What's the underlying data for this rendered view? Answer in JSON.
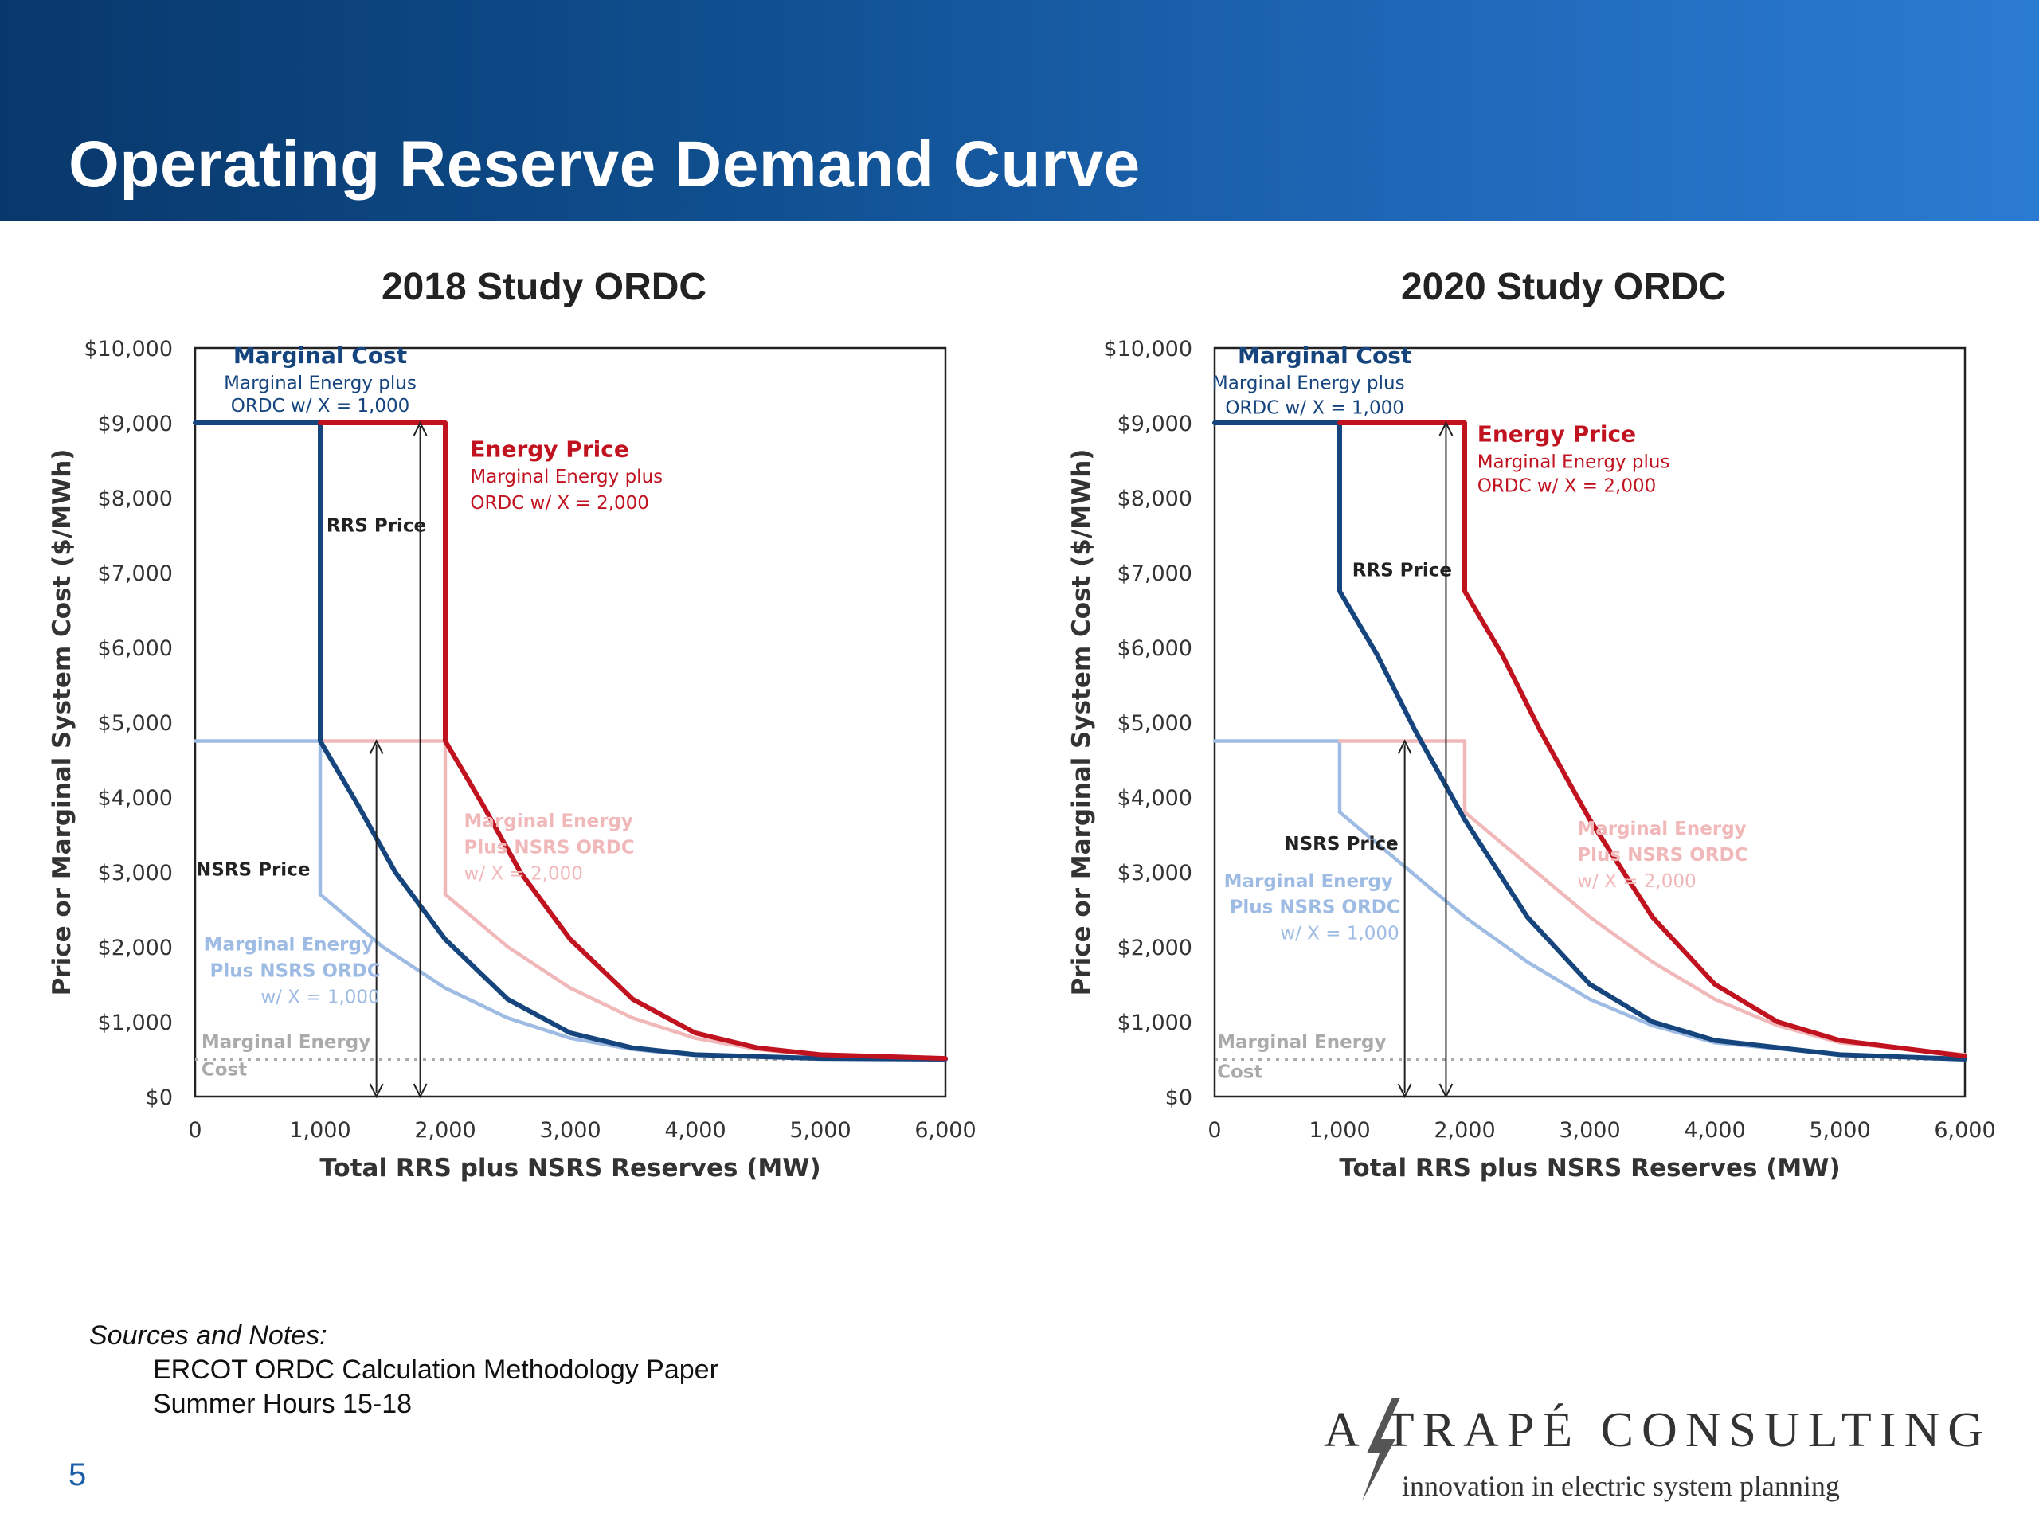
{
  "slide": {
    "title": "Operating Reserve Demand Curve"
  },
  "notes": {
    "heading": "Sources and Notes:",
    "lines": [
      "ERCOT ORDC Calculation Methodology Paper",
      "Summer Hours 15-18"
    ]
  },
  "page_number": "5",
  "logo": {
    "company": "A TRAPÉ CONSULTING",
    "tagline": "innovation in electric system planning",
    "icon": "lightning-bolt-icon"
  },
  "colors": {
    "marginal_cost": "#16457e",
    "energy_price": "#c1121f",
    "nsrs_marginal_cost": "#9dbbe3",
    "nsrs_energy_price": "#f1b8ba",
    "marginal_energy_cost": "#aaaaaa"
  },
  "chart_data": [
    {
      "type": "line",
      "title": "2018 Study ORDC",
      "xlabel": "Total RRS plus NSRS Reserves (MW)",
      "ylabel": "Price or Marginal System Cost ($/MWh)",
      "xlim": [
        0,
        6000
      ],
      "ylim": [
        0,
        10000
      ],
      "x_ticks": [
        "0",
        "1,000",
        "2,000",
        "3,000",
        "4,000",
        "5,000",
        "6,000"
      ],
      "y_ticks": [
        "$0",
        "$1,000",
        "$2,000",
        "$3,000",
        "$4,000",
        "$5,000",
        "$6,000",
        "$7,000",
        "$8,000",
        "$9,000",
        "$10,000"
      ],
      "grid": false,
      "series": [
        {
          "name": "Marginal Cost",
          "style": "thick",
          "color": "#16457e",
          "points": [
            [
              0,
              9000
            ],
            [
              1000,
              9000
            ],
            [
              1000,
              4750
            ],
            [
              1300,
              3900
            ],
            [
              1600,
              3000
            ],
            [
              2000,
              2100
            ],
            [
              2500,
              1300
            ],
            [
              3000,
              850
            ],
            [
              3500,
              650
            ],
            [
              4000,
              560
            ],
            [
              5000,
              510
            ],
            [
              6000,
              500
            ]
          ]
        },
        {
          "name": "Energy Price",
          "style": "thick",
          "color": "#c1121f",
          "points": [
            [
              1000,
              9000
            ],
            [
              2000,
              9000
            ],
            [
              2000,
              4750
            ],
            [
              2300,
              3900
            ],
            [
              2600,
              3000
            ],
            [
              3000,
              2100
            ],
            [
              3500,
              1300
            ],
            [
              4000,
              850
            ],
            [
              4500,
              650
            ],
            [
              5000,
              560
            ],
            [
              6000,
              510
            ]
          ]
        },
        {
          "name": "Marginal Energy Plus NSRS ORDC w/ X = 1,000",
          "style": "thin",
          "color": "#9dbbe3",
          "points": [
            [
              0,
              4750
            ],
            [
              1000,
              4750
            ],
            [
              1000,
              2700
            ],
            [
              1500,
              2000
            ],
            [
              2000,
              1450
            ],
            [
              2500,
              1050
            ],
            [
              3000,
              780
            ],
            [
              3500,
              630
            ],
            [
              4000,
              550
            ],
            [
              5000,
              510
            ],
            [
              6000,
              500
            ]
          ]
        },
        {
          "name": "Marginal Energy Plus NSRS ORDC w/ X = 2,000",
          "style": "thin",
          "color": "#f1b8ba",
          "points": [
            [
              1000,
              4750
            ],
            [
              2000,
              4750
            ],
            [
              2000,
              2700
            ],
            [
              2500,
              2000
            ],
            [
              3000,
              1450
            ],
            [
              3500,
              1050
            ],
            [
              4000,
              780
            ],
            [
              4500,
              630
            ],
            [
              5000,
              550
            ],
            [
              6000,
              510
            ]
          ]
        },
        {
          "name": "Marginal Energy Cost",
          "style": "dotted",
          "color": "#aaaaaa",
          "points": [
            [
              0,
              500
            ],
            [
              6000,
              500
            ]
          ]
        }
      ],
      "arrows": [
        {
          "label": "RRS Price",
          "x": 1800,
          "y_from": 0,
          "y_to": 9000
        },
        {
          "label": "NSRS Price",
          "x": 1450,
          "y_from": 0,
          "y_to": 4750
        }
      ],
      "annotations": [
        {
          "id": "mc-head",
          "text": "Marginal Cost",
          "x": 1000,
          "y": 9800,
          "color": "#16457e",
          "bold": true
        },
        {
          "id": "mc-sub1",
          "text": "Marginal Energy plus",
          "x": 1000,
          "y": 9450,
          "color": "#16457e"
        },
        {
          "id": "mc-sub2",
          "text": "ORDC w/ X = 1,000",
          "x": 1000,
          "y": 9150,
          "color": "#16457e"
        },
        {
          "id": "ep-head",
          "text": "Energy Price",
          "x": 2200,
          "y": 8550,
          "color": "#c1121f",
          "bold": true,
          "anchor": "start"
        },
        {
          "id": "ep-sub1",
          "text": "Marginal Energy plus",
          "x": 2200,
          "y": 8200,
          "color": "#c1121f",
          "anchor": "start"
        },
        {
          "id": "ep-sub2",
          "text": "ORDC w/ X = 2,000",
          "x": 2200,
          "y": 7850,
          "color": "#c1121f",
          "anchor": "start"
        },
        {
          "id": "rrs",
          "text": "RRS Price",
          "x": 1050,
          "y": 7550,
          "color": "#222",
          "bold": true,
          "anchor": "start"
        },
        {
          "id": "nsrs",
          "text": "NSRS Price",
          "x": 920,
          "y": 2950,
          "color": "#222",
          "bold": true,
          "anchor": "end"
        },
        {
          "id": "nsrs1-a",
          "text": "Marginal Energy",
          "x": 750,
          "y": 1950,
          "color": "#9dbbe3",
          "bold": true
        },
        {
          "id": "nsrs1-b",
          "text": "Plus NSRS ORDC",
          "x": 800,
          "y": 1600,
          "color": "#9dbbe3",
          "bold": true
        },
        {
          "id": "nsrs1-c",
          "text": "w/ X = 1,000",
          "x": 1000,
          "y": 1250,
          "color": "#9dbbe3"
        },
        {
          "id": "nsrs2-a",
          "text": "Marginal Energy",
          "x": 2150,
          "y": 3600,
          "color": "#f1b8ba",
          "bold": true,
          "anchor": "start"
        },
        {
          "id": "nsrs2-b",
          "text": "Plus NSRS ORDC",
          "x": 2150,
          "y": 3250,
          "color": "#f1b8ba",
          "bold": true,
          "anchor": "start"
        },
        {
          "id": "nsrs2-c",
          "text": "w/ X = 2,000",
          "x": 2150,
          "y": 2900,
          "color": "#f1b8ba",
          "anchor": "start"
        },
        {
          "id": "me-a",
          "text": "Marginal Energy",
          "x": 50,
          "y": 650,
          "color": "#aaaaaa",
          "bold": true,
          "anchor": "start"
        },
        {
          "id": "me-b",
          "text": "Cost",
          "x": 50,
          "y": 280,
          "color": "#aaaaaa",
          "bold": true,
          "anchor": "start"
        }
      ]
    },
    {
      "type": "line",
      "title": "2020 Study ORDC",
      "xlabel": "Total RRS plus NSRS Reserves (MW)",
      "ylabel": "Price or Marginal System Cost ($/MWh)",
      "xlim": [
        0,
        6000
      ],
      "ylim": [
        0,
        10000
      ],
      "x_ticks": [
        "0",
        "1,000",
        "2,000",
        "3,000",
        "4,000",
        "5,000",
        "6,000"
      ],
      "y_ticks": [
        "$0",
        "$1,000",
        "$2,000",
        "$3,000",
        "$4,000",
        "$5,000",
        "$6,000",
        "$7,000",
        "$8,000",
        "$9,000",
        "$10,000"
      ],
      "grid": false,
      "series": [
        {
          "name": "Marginal Cost",
          "style": "thick",
          "color": "#16457e",
          "points": [
            [
              0,
              9000
            ],
            [
              1000,
              9000
            ],
            [
              1000,
              6750
            ],
            [
              1300,
              5900
            ],
            [
              1600,
              4900
            ],
            [
              2000,
              3700
            ],
            [
              2500,
              2400
            ],
            [
              3000,
              1500
            ],
            [
              3500,
              1000
            ],
            [
              4000,
              750
            ],
            [
              5000,
              560
            ],
            [
              6000,
              500
            ]
          ]
        },
        {
          "name": "Energy Price",
          "style": "thick",
          "color": "#c1121f",
          "points": [
            [
              1000,
              9000
            ],
            [
              2000,
              9000
            ],
            [
              2000,
              6750
            ],
            [
              2300,
              5900
            ],
            [
              2600,
              4900
            ],
            [
              3000,
              3700
            ],
            [
              3500,
              2400
            ],
            [
              4000,
              1500
            ],
            [
              4500,
              1000
            ],
            [
              5000,
              750
            ],
            [
              6000,
              540
            ]
          ]
        },
        {
          "name": "Marginal Energy Plus NSRS ORDC w/ X = 1,000",
          "style": "thin",
          "color": "#9dbbe3",
          "points": [
            [
              0,
              4750
            ],
            [
              1000,
              4750
            ],
            [
              1000,
              3800
            ],
            [
              1500,
              3100
            ],
            [
              2000,
              2400
            ],
            [
              2500,
              1800
            ],
            [
              3000,
              1300
            ],
            [
              3500,
              950
            ],
            [
              4000,
              720
            ],
            [
              5000,
              560
            ],
            [
              6000,
              500
            ]
          ]
        },
        {
          "name": "Marginal Energy Plus NSRS ORDC w/ X = 2,000",
          "style": "thin",
          "color": "#f1b8ba",
          "points": [
            [
              1000,
              4750
            ],
            [
              2000,
              4750
            ],
            [
              2000,
              3800
            ],
            [
              2500,
              3100
            ],
            [
              3000,
              2400
            ],
            [
              3500,
              1800
            ],
            [
              4000,
              1300
            ],
            [
              4500,
              950
            ],
            [
              5000,
              720
            ],
            [
              6000,
              560
            ]
          ]
        },
        {
          "name": "Marginal Energy Cost",
          "style": "dotted",
          "color": "#aaaaaa",
          "points": [
            [
              0,
              500
            ],
            [
              6000,
              500
            ]
          ]
        }
      ],
      "arrows": [
        {
          "label": "RRS Price",
          "x": 1850,
          "y_from": 0,
          "y_to": 9000
        },
        {
          "label": "NSRS Price",
          "x": 1520,
          "y_from": 0,
          "y_to": 4750
        }
      ],
      "annotations": [
        {
          "id": "mc-head",
          "text": "Marginal Cost",
          "x": 880,
          "y": 9800,
          "color": "#16457e",
          "bold": true
        },
        {
          "id": "mc-sub1",
          "text": "Marginal Energy plus",
          "x": 750,
          "y": 9450,
          "color": "#16457e"
        },
        {
          "id": "mc-sub2",
          "text": "ORDC w/ X = 1,000",
          "x": 800,
          "y": 9120,
          "color": "#16457e"
        },
        {
          "id": "ep-head",
          "text": "Energy Price",
          "x": 2100,
          "y": 8750,
          "color": "#c1121f",
          "bold": true,
          "anchor": "start"
        },
        {
          "id": "ep-sub1",
          "text": "Marginal Energy plus",
          "x": 2100,
          "y": 8400,
          "color": "#c1121f",
          "anchor": "start"
        },
        {
          "id": "ep-sub2",
          "text": "ORDC w/ X = 2,000",
          "x": 2100,
          "y": 8080,
          "color": "#c1121f",
          "anchor": "start"
        },
        {
          "id": "rrs",
          "text": "RRS Price",
          "x": 1100,
          "y": 6950,
          "color": "#222",
          "bold": true,
          "anchor": "start"
        },
        {
          "id": "nsrs",
          "text": "NSRS Price",
          "x": 1470,
          "y": 3300,
          "color": "#222",
          "bold": true,
          "anchor": "end"
        },
        {
          "id": "nsrs1-a",
          "text": "Marginal Energy",
          "x": 750,
          "y": 2800,
          "color": "#9dbbe3",
          "bold": true
        },
        {
          "id": "nsrs1-b",
          "text": "Plus NSRS ORDC",
          "x": 800,
          "y": 2450,
          "color": "#9dbbe3",
          "bold": true
        },
        {
          "id": "nsrs1-c",
          "text": "w/ X = 1,000",
          "x": 1000,
          "y": 2100,
          "color": "#9dbbe3"
        },
        {
          "id": "nsrs2-a",
          "text": "Marginal Energy",
          "x": 2900,
          "y": 3500,
          "color": "#f1b8ba",
          "bold": true,
          "anchor": "start"
        },
        {
          "id": "nsrs2-b",
          "text": "Plus NSRS ORDC",
          "x": 2900,
          "y": 3150,
          "color": "#f1b8ba",
          "bold": true,
          "anchor": "start"
        },
        {
          "id": "nsrs2-c",
          "text": "w/ X = 2,000",
          "x": 2900,
          "y": 2800,
          "color": "#f1b8ba",
          "anchor": "start"
        },
        {
          "id": "me-a",
          "text": "Marginal Energy",
          "x": 20,
          "y": 650,
          "color": "#aaaaaa",
          "bold": true,
          "anchor": "start"
        },
        {
          "id": "me-b",
          "text": "Cost",
          "x": 20,
          "y": 250,
          "color": "#aaaaaa",
          "bold": true,
          "anchor": "start"
        }
      ]
    }
  ]
}
